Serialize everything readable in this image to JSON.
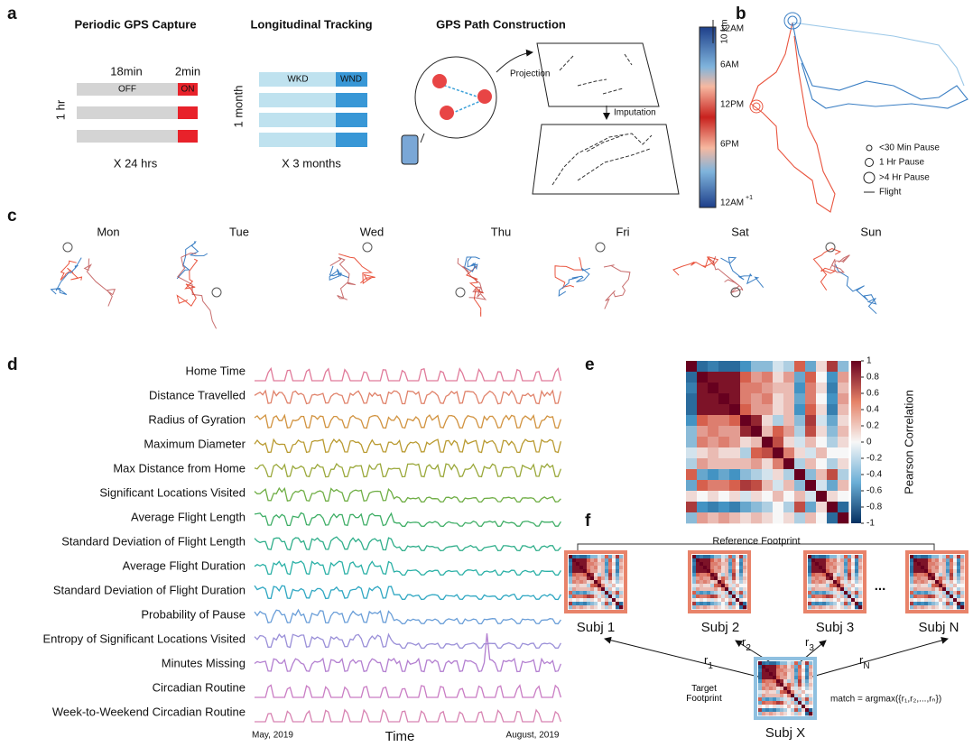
{
  "panel_a": {
    "label": "a",
    "capture": {
      "title": "Periodic GPS Capture",
      "off_duration": "18min",
      "on_duration": "2min",
      "off": "OFF",
      "on": "ON",
      "axis": "1 hr",
      "footer": "X 24 hrs"
    },
    "tracking": {
      "title": "Longitudinal Tracking",
      "weekday": "WKD",
      "weekend": "WND",
      "axis": "1 month",
      "footer": "X 3 months"
    },
    "path": {
      "title": "GPS Path Construction",
      "projection": "Projection",
      "imputation": "Imputation"
    }
  },
  "panel_b": {
    "label": "b",
    "scale": "10 km",
    "time_labels": [
      "12AM",
      "6AM",
      "12PM",
      "6PM",
      "12AM"
    ],
    "last_superscript": "+1",
    "legend": [
      "<30 Min Pause",
      "1 Hr Pause",
      ">4 Hr Pause",
      "Flight"
    ]
  },
  "panel_c": {
    "label": "c",
    "days": [
      "Mon",
      "Tue",
      "Wed",
      "Thu",
      "Fri",
      "Sat",
      "Sun"
    ]
  },
  "panel_d": {
    "label": "d",
    "features": [
      "Home Time",
      "Distance Travelled",
      "Radius of Gyration",
      "Maximum Diameter",
      "Max Distance from Home",
      "Significant Locations Visited",
      "Average Flight Length",
      "Standard Deviation of Flight Length",
      "Average Flight Duration",
      "Standard  Deviation of Flight Duration",
      "Probability of Pause",
      "Entropy of Significant Locations Visited",
      "Minutes Missing",
      "Circadian Routine",
      "Week-to-Weekend Circadian Routine"
    ],
    "x_start": "May, 2019",
    "x_label": "Time",
    "x_end": "August, 2019"
  },
  "panel_e": {
    "label": "e",
    "colorbar_label": "Pearson Correlation",
    "colorbar_lim": [
      -1,
      1
    ],
    "colorbar_ticks": [
      1,
      0.8,
      0.6,
      0.4,
      0.2,
      0,
      -0.2,
      -0.4,
      -0.6,
      -0.8,
      -1
    ],
    "matrix": [
      [
        1,
        -0.7,
        -0.6,
        -0.7,
        -0.7,
        -0.5,
        -0.3,
        -0.3,
        -0.1,
        -0.2,
        0.5,
        -0.4,
        0.1,
        0.7,
        -0.3
      ],
      [
        -0.7,
        1,
        0.9,
        0.9,
        0.9,
        0.5,
        0.3,
        0.4,
        0.1,
        0.3,
        -0.4,
        0.5,
        0,
        -0.5,
        0.3
      ],
      [
        -0.6,
        0.9,
        1,
        0.9,
        0.9,
        0.4,
        0.4,
        0.3,
        0.2,
        0.2,
        -0.5,
        0.4,
        0.1,
        -0.6,
        0.2
      ],
      [
        -0.7,
        0.9,
        0.9,
        1,
        0.9,
        0.4,
        0.3,
        0.4,
        0.1,
        0.2,
        -0.4,
        0.4,
        0,
        -0.5,
        0.3
      ],
      [
        -0.7,
        0.9,
        0.9,
        0.9,
        1,
        0.5,
        0.3,
        0.3,
        0.1,
        0.2,
        -0.5,
        0.5,
        0.1,
        -0.6,
        0.2
      ],
      [
        -0.5,
        0.5,
        0.4,
        0.4,
        0.5,
        1,
        0.8,
        0.1,
        -0.2,
        0.2,
        -0.3,
        0.7,
        -0.1,
        -0.4,
        0.1
      ],
      [
        -0.3,
        0.3,
        0.4,
        0.3,
        0.3,
        0.8,
        1,
        0.2,
        0.5,
        0.3,
        -0.2,
        0.6,
        0.1,
        -0.3,
        0.2
      ],
      [
        -0.3,
        0.4,
        0.3,
        0.4,
        0.3,
        0.1,
        0.2,
        1,
        0.6,
        0.1,
        -0.1,
        0.2,
        0,
        -0.2,
        0.1
      ],
      [
        -0.1,
        0.1,
        0.2,
        0.1,
        0.1,
        -0.2,
        0.5,
        0.6,
        1,
        0.4,
        0.1,
        -0.1,
        0.2,
        0,
        0
      ],
      [
        -0.2,
        0.3,
        0.2,
        0.2,
        0.2,
        0.2,
        0.3,
        0.1,
        0.4,
        1,
        -0.2,
        0.2,
        0,
        -0.2,
        0.1
      ],
      [
        0.5,
        -0.4,
        -0.5,
        -0.4,
        -0.5,
        -0.3,
        -0.2,
        -0.1,
        0.1,
        -0.2,
        1,
        -0.3,
        0.2,
        0.6,
        -0.2
      ],
      [
        -0.4,
        0.5,
        0.4,
        0.4,
        0.5,
        0.7,
        0.6,
        0.2,
        -0.1,
        0.2,
        -0.3,
        1,
        -0.1,
        -0.4,
        0.2
      ],
      [
        0.1,
        0,
        0.1,
        0,
        0.1,
        -0.1,
        0.1,
        0,
        0.2,
        0,
        0.2,
        -0.1,
        1,
        0.1,
        0
      ],
      [
        0.7,
        -0.5,
        -0.6,
        -0.5,
        -0.6,
        -0.4,
        -0.3,
        -0.2,
        0,
        -0.2,
        0.6,
        -0.4,
        0.1,
        1,
        -0.7
      ],
      [
        -0.3,
        0.3,
        0.2,
        0.3,
        0.2,
        0.1,
        0.2,
        0.1,
        0,
        0.1,
        -0.2,
        0.2,
        0,
        -0.7,
        1
      ]
    ]
  },
  "panel_f": {
    "label": "f",
    "reference": "Reference Footprint",
    "subjects": [
      "Subj 1",
      "Subj 2",
      "Subj 3",
      "...",
      "Subj N"
    ],
    "r_base": "r",
    "r_subs": [
      "1",
      "2",
      "3",
      "N"
    ],
    "target": "Target Footprint",
    "match": "match = argmax({r₁,r₂,...,rₙ})",
    "target_subject": "Subj X"
  }
}
